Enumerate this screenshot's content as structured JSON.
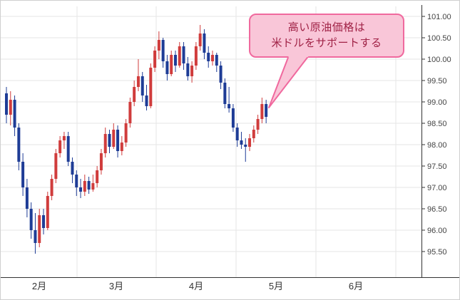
{
  "chart": {
    "y_axis_labels": [
      "101.00",
      "100.50",
      "100.00",
      "99.50",
      "99.00",
      "98.50",
      "98.00",
      "97.50",
      "97.00",
      "96.50",
      "96.00",
      "95.50"
    ],
    "x_axis_labels": [
      "2月",
      "3月",
      "4月",
      "5月",
      "6月"
    ],
    "colors": {
      "up": "#d03c3c",
      "down": "#1e3c96",
      "grid": "#e5e5e5",
      "axis": "#333333",
      "label": "#444444",
      "month_label": "#333333"
    },
    "annotation": {
      "line1": "高い原油価格は",
      "line2": "米ドルをサポートする",
      "fill": "#f9c6d8",
      "border": "#f0699e",
      "text_color": "#a02246"
    }
  },
  "chart_data": {
    "type": "candlestick",
    "title": "",
    "xlabel": "",
    "ylabel": "",
    "x_tick_labels": [
      "2月",
      "3月",
      "4月",
      "5月",
      "6月"
    ],
    "y_ticks": [
      95.5,
      96.0,
      96.5,
      97.0,
      97.5,
      98.0,
      98.5,
      99.0,
      99.5,
      100.0,
      100.5,
      101.0
    ],
    "ylim": [
      95.0,
      101.3
    ],
    "grid": true,
    "up_means": "close >= open (red)",
    "down_means": "close < open (blue)",
    "ohlc": [
      [
        99.2,
        99.35,
        98.5,
        98.7
      ],
      [
        98.7,
        99.25,
        98.45,
        99.05
      ],
      [
        99.05,
        99.15,
        98.2,
        98.4
      ],
      [
        98.4,
        98.5,
        97.4,
        97.6
      ],
      [
        97.6,
        97.8,
        96.8,
        97.0
      ],
      [
        97.0,
        97.2,
        96.3,
        96.5
      ],
      [
        96.5,
        96.65,
        95.8,
        96.0
      ],
      [
        96.0,
        96.4,
        95.45,
        95.7
      ],
      [
        95.7,
        96.5,
        95.6,
        96.35
      ],
      [
        96.35,
        96.5,
        95.9,
        96.05
      ],
      [
        96.05,
        96.9,
        96.0,
        96.8
      ],
      [
        96.8,
        97.3,
        96.7,
        97.2
      ],
      [
        97.2,
        97.9,
        97.1,
        97.8
      ],
      [
        97.8,
        98.2,
        97.7,
        98.1
      ],
      [
        98.1,
        98.3,
        97.9,
        98.2
      ],
      [
        98.2,
        98.3,
        97.5,
        97.6
      ],
      [
        97.6,
        97.7,
        97.1,
        97.3
      ],
      [
        97.3,
        97.4,
        96.8,
        97.0
      ],
      [
        97.0,
        97.2,
        96.75,
        96.9
      ],
      [
        96.9,
        97.3,
        96.8,
        97.15
      ],
      [
        97.15,
        97.25,
        96.85,
        96.95
      ],
      [
        96.95,
        97.3,
        96.9,
        97.1
      ],
      [
        97.1,
        97.5,
        97.0,
        97.4
      ],
      [
        97.4,
        97.9,
        97.3,
        97.8
      ],
      [
        97.8,
        98.4,
        97.7,
        98.25
      ],
      [
        98.25,
        98.35,
        97.8,
        97.95
      ],
      [
        97.95,
        98.5,
        97.9,
        98.35
      ],
      [
        98.35,
        98.45,
        97.7,
        97.85
      ],
      [
        97.85,
        98.2,
        97.75,
        98.05
      ],
      [
        98.05,
        98.6,
        97.95,
        98.5
      ],
      [
        98.5,
        99.1,
        98.4,
        99.0
      ],
      [
        99.0,
        99.5,
        98.9,
        99.35
      ],
      [
        99.35,
        100.0,
        99.25,
        99.6
      ],
      [
        99.6,
        99.7,
        99.0,
        99.15
      ],
      [
        99.15,
        99.4,
        98.8,
        98.9
      ],
      [
        98.9,
        99.9,
        98.85,
        99.8
      ],
      [
        99.8,
        100.3,
        99.7,
        100.2
      ],
      [
        100.2,
        100.65,
        100.0,
        100.45
      ],
      [
        100.45,
        100.5,
        99.8,
        99.95
      ],
      [
        99.95,
        100.1,
        99.5,
        99.65
      ],
      [
        99.65,
        100.2,
        99.6,
        100.1
      ],
      [
        100.1,
        100.2,
        99.7,
        99.85
      ],
      [
        99.85,
        100.4,
        99.8,
        100.3
      ],
      [
        100.3,
        100.4,
        99.75,
        99.9
      ],
      [
        99.9,
        100.05,
        99.5,
        99.6
      ],
      [
        99.6,
        99.95,
        99.45,
        99.85
      ],
      [
        99.85,
        100.4,
        99.75,
        100.3
      ],
      [
        100.3,
        100.8,
        100.2,
        100.6
      ],
      [
        100.6,
        100.7,
        100.0,
        100.15
      ],
      [
        100.15,
        100.3,
        99.8,
        99.95
      ],
      [
        99.95,
        100.2,
        99.85,
        100.1
      ],
      [
        100.1,
        100.15,
        99.7,
        99.85
      ],
      [
        99.85,
        99.95,
        99.3,
        99.45
      ],
      [
        99.45,
        99.55,
        98.85,
        98.95
      ],
      [
        98.95,
        99.35,
        98.75,
        98.85
      ],
      [
        98.85,
        98.95,
        98.3,
        98.4
      ],
      [
        98.4,
        98.5,
        97.95,
        98.1
      ],
      [
        98.1,
        98.3,
        97.9,
        98.0
      ],
      [
        98.0,
        98.15,
        97.6,
        97.95
      ],
      [
        97.95,
        98.25,
        97.85,
        98.15
      ],
      [
        98.15,
        98.45,
        98.05,
        98.35
      ],
      [
        98.35,
        98.7,
        98.25,
        98.6
      ],
      [
        98.6,
        99.1,
        98.5,
        98.95
      ],
      [
        98.95,
        99.05,
        98.5,
        98.65
      ]
    ]
  }
}
